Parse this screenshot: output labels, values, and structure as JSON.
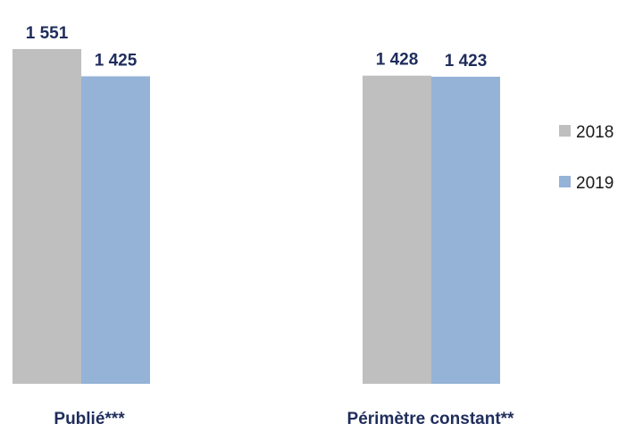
{
  "chart_data": {
    "type": "bar",
    "categories": [
      "Publié***",
      "Périmètre constant**"
    ],
    "series": [
      {
        "name": "2018",
        "values": [
          1551,
          1428
        ],
        "labels": [
          "1 551",
          "1 428"
        ],
        "color": "#bfbfbf"
      },
      {
        "name": "2019",
        "values": [
          1425,
          1423
        ],
        "labels": [
          "1 425",
          "1 423"
        ],
        "color": "#95b3d7"
      }
    ],
    "title": "",
    "xlabel": "",
    "ylabel": "",
    "ylim": [
      0,
      1551
    ],
    "grid": false,
    "legend": "right",
    "label_color": "#1f2d5c"
  }
}
